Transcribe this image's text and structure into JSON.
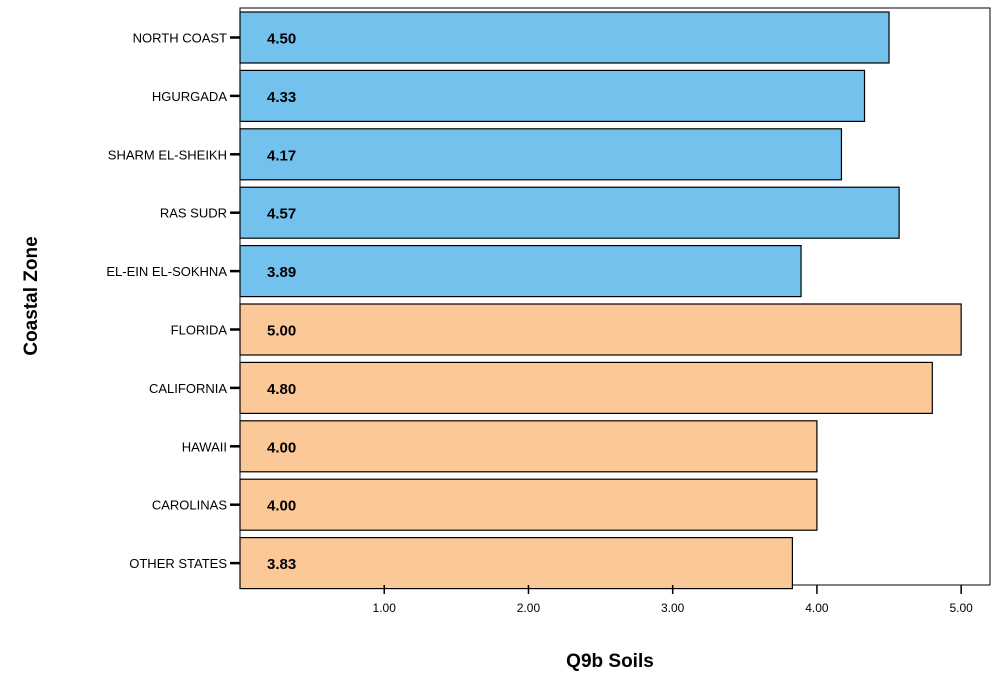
{
  "chart_data": {
    "type": "bar",
    "orientation": "horizontal",
    "categories": [
      "NORTH COAST",
      "HGURGADA",
      "SHARM EL-SHEIKH",
      "RAS SUDR",
      "EL-EIN EL-SOKHNA",
      "FLORIDA",
      "CALIFORNIA",
      "HAWAII",
      "CAROLINAS",
      "OTHER STATES"
    ],
    "values": [
      4.5,
      4.33,
      4.17,
      4.57,
      3.89,
      5.0,
      4.8,
      4.0,
      4.0,
      3.83
    ],
    "value_labels": [
      "4.50",
      "4.33",
      "4.17",
      "4.57",
      "3.89",
      "5.00",
      "4.80",
      "4.00",
      "4.00",
      "3.83"
    ],
    "bar_colors": [
      "#73c2ee",
      "#73c2ee",
      "#73c2ee",
      "#73c2ee",
      "#73c2ee",
      "#fbc897",
      "#fbc897",
      "#fbc897",
      "#fbc897",
      "#fbc897"
    ],
    "xlabel": "Q9b Soils",
    "ylabel": "Coastal Zone",
    "xticks": [
      "1.00",
      "2.00",
      "3.00",
      "4.00",
      "5.00"
    ],
    "xtick_values": [
      1,
      2,
      3,
      4,
      5
    ],
    "xlim": [
      0,
      5.2
    ],
    "grid": false
  }
}
